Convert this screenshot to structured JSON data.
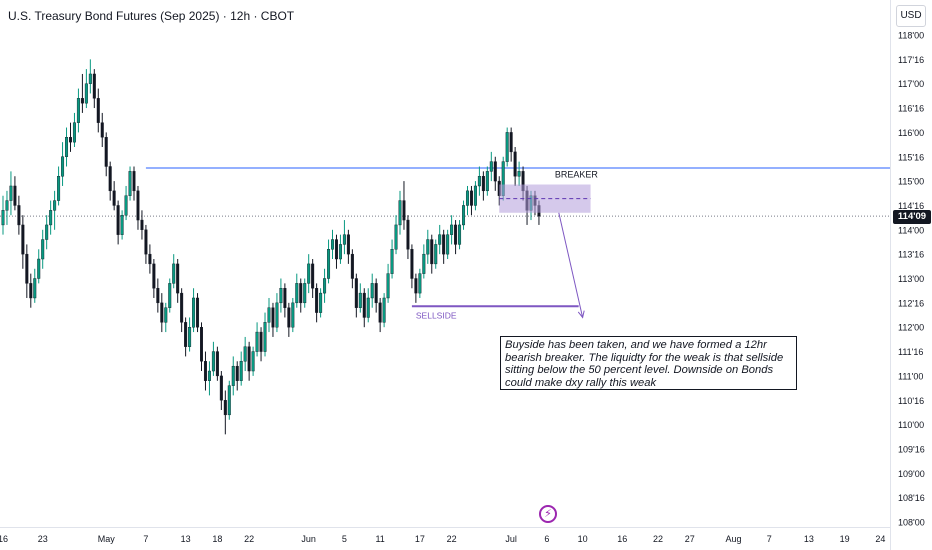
{
  "header": {
    "title": "U.S. Treasury Bond Futures (Sep 2025) · 12h · CBOT",
    "currency": "USD"
  },
  "colors": {
    "up": "#089981",
    "down": "#131722",
    "level_line": "#2962ff",
    "sellside_line": "#7e57c2",
    "zone_fill": "#b39ddb",
    "arrow": "#7e57c2"
  },
  "chart_data": {
    "type": "candlestick",
    "y_axis": {
      "min": 108.0,
      "max": 118.5,
      "ticks": [
        {
          "value": 118.0,
          "label": "118'00"
        },
        {
          "value": 117.5,
          "label": "117'16"
        },
        {
          "value": 117.0,
          "label": "117'00"
        },
        {
          "value": 116.5,
          "label": "116'16"
        },
        {
          "value": 116.0,
          "label": "116'00"
        },
        {
          "value": 115.5,
          "label": "115'16"
        },
        {
          "value": 115.0,
          "label": "115'00"
        },
        {
          "value": 114.5,
          "label": "114'16"
        },
        {
          "value": 114.0,
          "label": "114'00"
        },
        {
          "value": 113.5,
          "label": "113'16"
        },
        {
          "value": 113.0,
          "label": "113'00"
        },
        {
          "value": 112.5,
          "label": "112'16"
        },
        {
          "value": 112.0,
          "label": "112'00"
        },
        {
          "value": 111.5,
          "label": "111'16"
        },
        {
          "value": 111.0,
          "label": "111'00"
        },
        {
          "value": 110.5,
          "label": "110'16"
        },
        {
          "value": 110.0,
          "label": "110'00"
        },
        {
          "value": 109.5,
          "label": "109'16"
        },
        {
          "value": 109.0,
          "label": "109'00"
        },
        {
          "value": 108.5,
          "label": "108'16"
        },
        {
          "value": 108.0,
          "label": "108'00"
        }
      ]
    },
    "x_axis": {
      "ticks": [
        {
          "index": 0,
          "label": "16"
        },
        {
          "index": 10,
          "label": "23"
        },
        {
          "index": 26,
          "label": "May"
        },
        {
          "index": 36,
          "label": "7"
        },
        {
          "index": 46,
          "label": "13"
        },
        {
          "index": 54,
          "label": "18"
        },
        {
          "index": 62,
          "label": "22"
        },
        {
          "index": 77,
          "label": "Jun"
        },
        {
          "index": 86,
          "label": "5"
        },
        {
          "index": 95,
          "label": "11"
        },
        {
          "index": 105,
          "label": "17"
        },
        {
          "index": 113,
          "label": "22"
        },
        {
          "index": 128,
          "label": "Jul"
        },
        {
          "index": 137,
          "label": "6"
        },
        {
          "index": 146,
          "label": "10"
        },
        {
          "index": 156,
          "label": "16"
        },
        {
          "index": 165,
          "label": "22"
        },
        {
          "index": 173,
          "label": "27"
        },
        {
          "index": 184,
          "label": "Aug"
        },
        {
          "index": 193,
          "label": "7"
        },
        {
          "index": 203,
          "label": "13"
        },
        {
          "index": 212,
          "label": "19"
        },
        {
          "index": 221,
          "label": "24"
        }
      ]
    },
    "last_price": {
      "value": 114.28,
      "label": "114'09"
    },
    "candles": [
      {
        "o": 114.1,
        "h": 114.7,
        "l": 113.9,
        "c": 114.4
      },
      {
        "o": 114.4,
        "h": 114.8,
        "l": 114.1,
        "c": 114.6
      },
      {
        "o": 114.6,
        "h": 115.2,
        "l": 114.3,
        "c": 114.9
      },
      {
        "o": 114.9,
        "h": 115.1,
        "l": 114.4,
        "c": 114.5
      },
      {
        "o": 114.5,
        "h": 114.7,
        "l": 113.9,
        "c": 114.1
      },
      {
        "o": 114.1,
        "h": 114.3,
        "l": 113.2,
        "c": 113.5
      },
      {
        "o": 113.5,
        "h": 113.7,
        "l": 112.6,
        "c": 112.9
      },
      {
        "o": 112.9,
        "h": 113.1,
        "l": 112.4,
        "c": 112.6
      },
      {
        "o": 112.6,
        "h": 113.2,
        "l": 112.5,
        "c": 113.0
      },
      {
        "o": 113.0,
        "h": 113.6,
        "l": 112.9,
        "c": 113.4
      },
      {
        "o": 113.4,
        "h": 114.0,
        "l": 113.2,
        "c": 113.8
      },
      {
        "o": 113.8,
        "h": 114.3,
        "l": 113.6,
        "c": 114.1
      },
      {
        "o": 114.1,
        "h": 114.6,
        "l": 113.9,
        "c": 114.4
      },
      {
        "o": 114.4,
        "h": 114.8,
        "l": 114.0,
        "c": 114.6
      },
      {
        "o": 114.6,
        "h": 115.3,
        "l": 114.5,
        "c": 115.1
      },
      {
        "o": 115.1,
        "h": 115.8,
        "l": 114.9,
        "c": 115.5
      },
      {
        "o": 115.5,
        "h": 116.1,
        "l": 115.3,
        "c": 115.9
      },
      {
        "o": 115.9,
        "h": 116.2,
        "l": 115.6,
        "c": 115.8
      },
      {
        "o": 115.8,
        "h": 116.4,
        "l": 115.7,
        "c": 116.2
      },
      {
        "o": 116.2,
        "h": 116.9,
        "l": 116.0,
        "c": 116.7
      },
      {
        "o": 116.7,
        "h": 117.2,
        "l": 116.4,
        "c": 116.6
      },
      {
        "o": 116.6,
        "h": 117.3,
        "l": 116.5,
        "c": 117.0
      },
      {
        "o": 117.0,
        "h": 117.5,
        "l": 116.8,
        "c": 117.2
      },
      {
        "o": 117.2,
        "h": 117.3,
        "l": 116.5,
        "c": 116.7
      },
      {
        "o": 116.7,
        "h": 116.9,
        "l": 116.0,
        "c": 116.2
      },
      {
        "o": 116.2,
        "h": 116.4,
        "l": 115.7,
        "c": 115.9
      },
      {
        "o": 115.9,
        "h": 116.0,
        "l": 115.1,
        "c": 115.3
      },
      {
        "o": 115.3,
        "h": 115.4,
        "l": 114.6,
        "c": 114.8
      },
      {
        "o": 114.8,
        "h": 115.0,
        "l": 114.4,
        "c": 114.5
      },
      {
        "o": 114.5,
        "h": 114.6,
        "l": 113.7,
        "c": 113.9
      },
      {
        "o": 113.9,
        "h": 114.4,
        "l": 113.8,
        "c": 114.3
      },
      {
        "o": 114.3,
        "h": 114.9,
        "l": 114.2,
        "c": 114.7
      },
      {
        "o": 114.7,
        "h": 115.3,
        "l": 114.6,
        "c": 115.2
      },
      {
        "o": 115.2,
        "h": 115.3,
        "l": 114.6,
        "c": 114.8
      },
      {
        "o": 114.8,
        "h": 114.9,
        "l": 114.0,
        "c": 114.2
      },
      {
        "o": 114.2,
        "h": 114.4,
        "l": 113.8,
        "c": 114.0
      },
      {
        "o": 114.0,
        "h": 114.1,
        "l": 113.3,
        "c": 113.5
      },
      {
        "o": 113.5,
        "h": 113.7,
        "l": 113.1,
        "c": 113.3
      },
      {
        "o": 113.3,
        "h": 113.4,
        "l": 112.6,
        "c": 112.8
      },
      {
        "o": 112.8,
        "h": 113.0,
        "l": 112.3,
        "c": 112.5
      },
      {
        "o": 112.5,
        "h": 112.7,
        "l": 111.9,
        "c": 112.1
      },
      {
        "o": 112.1,
        "h": 112.5,
        "l": 111.9,
        "c": 112.4
      },
      {
        "o": 112.4,
        "h": 113.0,
        "l": 112.3,
        "c": 112.9
      },
      {
        "o": 112.9,
        "h": 113.5,
        "l": 112.8,
        "c": 113.3
      },
      {
        "o": 113.3,
        "h": 113.4,
        "l": 112.5,
        "c": 112.7
      },
      {
        "o": 112.7,
        "h": 112.8,
        "l": 111.9,
        "c": 112.1
      },
      {
        "o": 112.1,
        "h": 112.2,
        "l": 111.4,
        "c": 111.6
      },
      {
        "o": 111.6,
        "h": 112.2,
        "l": 111.5,
        "c": 112.0
      },
      {
        "o": 112.0,
        "h": 112.8,
        "l": 111.9,
        "c": 112.6
      },
      {
        "o": 112.6,
        "h": 112.7,
        "l": 111.9,
        "c": 112.0
      },
      {
        "o": 112.0,
        "h": 112.1,
        "l": 111.1,
        "c": 111.3
      },
      {
        "o": 111.3,
        "h": 111.5,
        "l": 110.7,
        "c": 110.9
      },
      {
        "o": 110.9,
        "h": 111.3,
        "l": 110.6,
        "c": 111.1
      },
      {
        "o": 111.1,
        "h": 111.7,
        "l": 111.0,
        "c": 111.5
      },
      {
        "o": 111.5,
        "h": 111.6,
        "l": 110.9,
        "c": 111.0
      },
      {
        "o": 111.0,
        "h": 111.1,
        "l": 110.3,
        "c": 110.5
      },
      {
        "o": 110.5,
        "h": 110.7,
        "l": 109.8,
        "c": 110.2
      },
      {
        "o": 110.2,
        "h": 110.9,
        "l": 110.1,
        "c": 110.8
      },
      {
        "o": 110.8,
        "h": 111.4,
        "l": 110.6,
        "c": 111.2
      },
      {
        "o": 111.2,
        "h": 111.3,
        "l": 110.7,
        "c": 110.9
      },
      {
        "o": 110.9,
        "h": 111.5,
        "l": 110.8,
        "c": 111.3
      },
      {
        "o": 111.3,
        "h": 111.8,
        "l": 111.1,
        "c": 111.6
      },
      {
        "o": 111.6,
        "h": 111.7,
        "l": 110.9,
        "c": 111.1
      },
      {
        "o": 111.1,
        "h": 111.6,
        "l": 111.0,
        "c": 111.5
      },
      {
        "o": 111.5,
        "h": 112.1,
        "l": 111.4,
        "c": 111.9
      },
      {
        "o": 111.9,
        "h": 112.0,
        "l": 111.3,
        "c": 111.5
      },
      {
        "o": 111.5,
        "h": 112.3,
        "l": 111.4,
        "c": 112.1
      },
      {
        "o": 112.1,
        "h": 112.6,
        "l": 111.9,
        "c": 112.4
      },
      {
        "o": 112.4,
        "h": 112.5,
        "l": 111.8,
        "c": 112.0
      },
      {
        "o": 112.0,
        "h": 112.7,
        "l": 111.9,
        "c": 112.5
      },
      {
        "o": 112.5,
        "h": 113.0,
        "l": 112.3,
        "c": 112.8
      },
      {
        "o": 112.8,
        "h": 112.9,
        "l": 112.2,
        "c": 112.4
      },
      {
        "o": 112.4,
        "h": 112.5,
        "l": 111.8,
        "c": 112.0
      },
      {
        "o": 112.0,
        "h": 112.6,
        "l": 111.9,
        "c": 112.5
      },
      {
        "o": 112.5,
        "h": 113.1,
        "l": 112.4,
        "c": 112.9
      },
      {
        "o": 112.9,
        "h": 113.0,
        "l": 112.3,
        "c": 112.5
      },
      {
        "o": 112.5,
        "h": 113.0,
        "l": 112.4,
        "c": 112.9
      },
      {
        "o": 112.9,
        "h": 113.5,
        "l": 112.7,
        "c": 113.3
      },
      {
        "o": 113.3,
        "h": 113.4,
        "l": 112.6,
        "c": 112.8
      },
      {
        "o": 112.8,
        "h": 112.9,
        "l": 112.1,
        "c": 112.3
      },
      {
        "o": 112.3,
        "h": 112.8,
        "l": 112.2,
        "c": 112.7
      },
      {
        "o": 112.7,
        "h": 113.2,
        "l": 112.5,
        "c": 113.0
      },
      {
        "o": 113.0,
        "h": 113.8,
        "l": 112.9,
        "c": 113.6
      },
      {
        "o": 113.6,
        "h": 114.0,
        "l": 113.4,
        "c": 113.8
      },
      {
        "o": 113.8,
        "h": 113.9,
        "l": 113.2,
        "c": 113.4
      },
      {
        "o": 113.4,
        "h": 113.9,
        "l": 113.3,
        "c": 113.7
      },
      {
        "o": 113.7,
        "h": 114.2,
        "l": 113.5,
        "c": 113.9
      },
      {
        "o": 113.9,
        "h": 114.0,
        "l": 113.3,
        "c": 113.5
      },
      {
        "o": 113.5,
        "h": 113.6,
        "l": 112.8,
        "c": 113.0
      },
      {
        "o": 113.0,
        "h": 113.1,
        "l": 112.2,
        "c": 112.4
      },
      {
        "o": 112.4,
        "h": 112.9,
        "l": 112.3,
        "c": 112.7
      },
      {
        "o": 112.7,
        "h": 112.8,
        "l": 112.0,
        "c": 112.2
      },
      {
        "o": 112.2,
        "h": 112.8,
        "l": 112.1,
        "c": 112.6
      },
      {
        "o": 112.6,
        "h": 113.1,
        "l": 112.4,
        "c": 112.9
      },
      {
        "o": 112.9,
        "h": 113.0,
        "l": 112.3,
        "c": 112.5
      },
      {
        "o": 112.5,
        "h": 112.6,
        "l": 111.9,
        "c": 112.1
      },
      {
        "o": 112.1,
        "h": 112.7,
        "l": 112.0,
        "c": 112.6
      },
      {
        "o": 112.6,
        "h": 113.3,
        "l": 112.5,
        "c": 113.1
      },
      {
        "o": 113.1,
        "h": 113.8,
        "l": 113.0,
        "c": 113.6
      },
      {
        "o": 113.6,
        "h": 114.3,
        "l": 113.5,
        "c": 114.1
      },
      {
        "o": 114.1,
        "h": 114.8,
        "l": 113.9,
        "c": 114.6
      },
      {
        "o": 114.6,
        "h": 115.0,
        "l": 114.0,
        "c": 114.2
      },
      {
        "o": 114.2,
        "h": 114.3,
        "l": 113.4,
        "c": 113.6
      },
      {
        "o": 113.6,
        "h": 113.7,
        "l": 112.8,
        "c": 113.0
      },
      {
        "o": 113.0,
        "h": 113.1,
        "l": 112.5,
        "c": 112.7
      },
      {
        "o": 112.7,
        "h": 113.2,
        "l": 112.6,
        "c": 113.1
      },
      {
        "o": 113.1,
        "h": 113.7,
        "l": 113.0,
        "c": 113.5
      },
      {
        "o": 113.5,
        "h": 114.0,
        "l": 113.3,
        "c": 113.8
      },
      {
        "o": 113.8,
        "h": 113.9,
        "l": 113.1,
        "c": 113.3
      },
      {
        "o": 113.3,
        "h": 113.8,
        "l": 113.2,
        "c": 113.7
      },
      {
        "o": 113.7,
        "h": 114.1,
        "l": 113.5,
        "c": 113.9
      },
      {
        "o": 113.9,
        "h": 114.0,
        "l": 113.3,
        "c": 113.5
      },
      {
        "o": 113.5,
        "h": 114.0,
        "l": 113.4,
        "c": 113.9
      },
      {
        "o": 113.9,
        "h": 114.3,
        "l": 113.7,
        "c": 114.1
      },
      {
        "o": 114.1,
        "h": 114.2,
        "l": 113.5,
        "c": 113.7
      },
      {
        "o": 113.7,
        "h": 114.2,
        "l": 113.6,
        "c": 114.1
      },
      {
        "o": 114.1,
        "h": 114.6,
        "l": 114.0,
        "c": 114.5
      },
      {
        "o": 114.5,
        "h": 114.9,
        "l": 114.3,
        "c": 114.8
      },
      {
        "o": 114.8,
        "h": 114.9,
        "l": 114.3,
        "c": 114.5
      },
      {
        "o": 114.5,
        "h": 115.0,
        "l": 114.4,
        "c": 114.9
      },
      {
        "o": 114.9,
        "h": 115.3,
        "l": 114.7,
        "c": 115.1
      },
      {
        "o": 115.1,
        "h": 115.2,
        "l": 114.6,
        "c": 114.8
      },
      {
        "o": 114.8,
        "h": 115.3,
        "l": 114.7,
        "c": 115.2
      },
      {
        "o": 115.2,
        "h": 115.6,
        "l": 115.0,
        "c": 115.4
      },
      {
        "o": 115.4,
        "h": 115.5,
        "l": 114.8,
        "c": 115.0
      },
      {
        "o": 115.0,
        "h": 115.1,
        "l": 114.5,
        "c": 114.7
      },
      {
        "o": 114.7,
        "h": 115.5,
        "l": 114.6,
        "c": 115.4
      },
      {
        "o": 115.4,
        "h": 116.1,
        "l": 115.3,
        "c": 116.0
      },
      {
        "o": 116.0,
        "h": 116.1,
        "l": 115.4,
        "c": 115.6
      },
      {
        "o": 115.6,
        "h": 115.7,
        "l": 114.9,
        "c": 115.1
      },
      {
        "o": 115.1,
        "h": 115.4,
        "l": 114.9,
        "c": 115.2
      },
      {
        "o": 115.2,
        "h": 115.3,
        "l": 114.6,
        "c": 114.8
      },
      {
        "o": 114.8,
        "h": 114.9,
        "l": 114.1,
        "c": 114.4
      },
      {
        "o": 114.4,
        "h": 114.8,
        "l": 114.2,
        "c": 114.7
      },
      {
        "o": 114.7,
        "h": 114.8,
        "l": 114.3,
        "c": 114.5
      },
      {
        "o": 114.5,
        "h": 114.6,
        "l": 114.1,
        "c": 114.28
      }
    ],
    "annotations": {
      "resistance_level": 115.27,
      "dotted_level": 114.28,
      "sellside": {
        "value": 112.43,
        "label": "SELLSIDE"
      },
      "breaker": {
        "top": 114.93,
        "bottom": 114.35,
        "mid": 114.64,
        "label": "BREAKER"
      },
      "arrow": {
        "from_index": 140,
        "from_price": 114.35,
        "to_index": 146,
        "to_price": 112.2
      }
    }
  },
  "note": {
    "text": "Buyside has been taken, and we have formed a 12hr bearish breaker. The liquidty for the weak is that sellside sitting below the 50 percent level. Downside on Bonds could make dxy rally this weak"
  },
  "brand": {
    "icon": "lightning-icon"
  }
}
